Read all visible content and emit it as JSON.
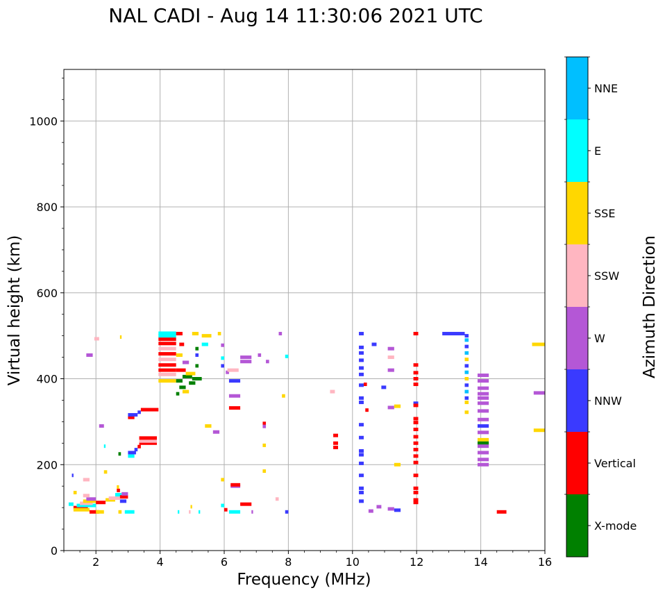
{
  "chart_data": {
    "type": "scatter",
    "title": "NAL CADI - Aug 14 11:30:06 2021 UTC",
    "xlabel": "Frequency (MHz)",
    "ylabel": "Virtual height (km)",
    "xlim": [
      1,
      16
    ],
    "ylim": [
      0,
      1120
    ],
    "xticks": [
      2,
      4,
      6,
      8,
      10,
      12,
      14,
      16
    ],
    "yticks": [
      0,
      200,
      400,
      600,
      800,
      1000
    ],
    "grid": true,
    "colorbar": {
      "label": "Azimuth Direction",
      "categories": [
        "X-mode",
        "Vertical",
        "NNW",
        "W",
        "SSW",
        "SSE",
        "E",
        "NNE"
      ],
      "colors": [
        "#008000",
        "#ff0000",
        "#3a3aff",
        "#b457d6",
        "#ffb6c1",
        "#ffd700",
        "#00ffff",
        "#00bfff"
      ]
    },
    "marks": [
      {
        "f": 1.3,
        "f2": 1.75,
        "h": 100,
        "dir": "Vertical"
      },
      {
        "f": 1.3,
        "f2": 1.8,
        "h": 95,
        "dir": "SSE"
      },
      {
        "f": 1.4,
        "f2": 2.0,
        "h": 105,
        "dir": "E"
      },
      {
        "f": 1.5,
        "f2": 1.9,
        "h": 110,
        "dir": "SSW"
      },
      {
        "f": 1.6,
        "f2": 2.0,
        "h": 115,
        "dir": "SSE"
      },
      {
        "f": 1.7,
        "f2": 2.0,
        "h": 120,
        "dir": "W"
      },
      {
        "f": 1.3,
        "f2": 1.4,
        "h": 135,
        "dir": "SSE"
      },
      {
        "f": 1.6,
        "f2": 1.8,
        "h": 128,
        "dir": "SSW"
      },
      {
        "f": 1.6,
        "f2": 1.8,
        "h": 165,
        "dir": "SSW"
      },
      {
        "f": 1.25,
        "f2": 1.3,
        "h": 175,
        "dir": "NNW"
      },
      {
        "f": 1.15,
        "f2": 1.3,
        "h": 108,
        "dir": "E"
      },
      {
        "f": 1.8,
        "f2": 2.1,
        "h": 90,
        "dir": "Vertical"
      },
      {
        "f": 2.0,
        "f2": 2.3,
        "h": 112,
        "dir": "Vertical"
      },
      {
        "f": 2.0,
        "f2": 2.25,
        "h": 90,
        "dir": "SSE"
      },
      {
        "f": 2.3,
        "f2": 2.6,
        "h": 118,
        "dir": "SSE"
      },
      {
        "f": 2.4,
        "f2": 2.75,
        "h": 122,
        "dir": "SSW"
      },
      {
        "f": 2.6,
        "f2": 2.8,
        "h": 130,
        "dir": "E"
      },
      {
        "f": 2.75,
        "f2": 3.0,
        "h": 125,
        "dir": "Vertical"
      },
      {
        "f": 2.75,
        "f2": 2.95,
        "h": 115,
        "dir": "NNW"
      },
      {
        "f": 2.8,
        "f2": 3.0,
        "h": 132,
        "dir": "W"
      },
      {
        "f": 2.65,
        "f2": 2.75,
        "h": 140,
        "dir": "Vertical"
      },
      {
        "f": 2.65,
        "f2": 2.72,
        "h": 148,
        "dir": "SSE"
      },
      {
        "f": 2.9,
        "f2": 3.2,
        "h": 90,
        "dir": "E"
      },
      {
        "f": 2.7,
        "f2": 2.8,
        "h": 90,
        "dir": "SSE"
      },
      {
        "f": 2.25,
        "f2": 2.35,
        "h": 183,
        "dir": "SSE"
      },
      {
        "f": 2.25,
        "f2": 2.3,
        "h": 243,
        "dir": "E"
      },
      {
        "f": 2.1,
        "f2": 2.25,
        "h": 290,
        "dir": "W"
      },
      {
        "f": 2.7,
        "f2": 2.78,
        "h": 225,
        "dir": "X-mode"
      },
      {
        "f": 2.75,
        "f2": 2.8,
        "h": 497,
        "dir": "SSE"
      },
      {
        "f": 1.95,
        "f2": 2.1,
        "h": 493,
        "dir": "SSW"
      },
      {
        "f": 1.7,
        "f2": 1.9,
        "h": 455,
        "dir": "W"
      },
      {
        "f": 3.0,
        "f2": 3.2,
        "h": 220,
        "dir": "E"
      },
      {
        "f": 3.0,
        "f2": 3.25,
        "h": 228,
        "dir": "NNW"
      },
      {
        "f": 3.2,
        "f2": 3.3,
        "h": 235,
        "dir": "NNW"
      },
      {
        "f": 3.3,
        "f2": 3.4,
        "h": 242,
        "dir": "Vertical"
      },
      {
        "f": 3.35,
        "f2": 3.9,
        "h": 250,
        "dir": "Vertical"
      },
      {
        "f": 3.35,
        "f2": 3.9,
        "h": 255,
        "dir": "SSW"
      },
      {
        "f": 3.35,
        "f2": 3.9,
        "h": 262,
        "dir": "Vertical"
      },
      {
        "f": 3.0,
        "f2": 3.2,
        "h": 310,
        "dir": "Vertical"
      },
      {
        "f": 3.0,
        "f2": 3.3,
        "h": 316,
        "dir": "NNW"
      },
      {
        "f": 3.3,
        "f2": 3.4,
        "h": 322,
        "dir": "NNW"
      },
      {
        "f": 3.4,
        "f2": 3.95,
        "h": 328,
        "dir": "Vertical"
      },
      {
        "f": 3.95,
        "f2": 4.5,
        "h": 395,
        "dir": "SSE"
      },
      {
        "f": 3.95,
        "f2": 4.5,
        "h": 410,
        "dir": "SSW"
      },
      {
        "f": 3.95,
        "f2": 4.5,
        "h": 420,
        "dir": "Vertical"
      },
      {
        "f": 3.95,
        "f2": 4.5,
        "h": 432,
        "dir": "Vertical"
      },
      {
        "f": 3.95,
        "f2": 4.5,
        "h": 445,
        "dir": "SSW"
      },
      {
        "f": 3.95,
        "f2": 4.5,
        "h": 458,
        "dir": "Vertical"
      },
      {
        "f": 3.95,
        "f2": 4.5,
        "h": 470,
        "dir": "SSW"
      },
      {
        "f": 3.95,
        "f2": 4.5,
        "h": 482,
        "dir": "Vertical"
      },
      {
        "f": 3.95,
        "f2": 4.5,
        "h": 492,
        "dir": "Vertical"
      },
      {
        "f": 3.95,
        "f2": 4.5,
        "h": 500,
        "dir": "E"
      },
      {
        "f": 3.95,
        "f2": 4.5,
        "h": 506,
        "dir": "E"
      },
      {
        "f": 4.5,
        "f2": 4.7,
        "h": 395,
        "dir": "X-mode"
      },
      {
        "f": 4.6,
        "f2": 4.8,
        "h": 380,
        "dir": "X-mode"
      },
      {
        "f": 4.5,
        "f2": 4.6,
        "h": 365,
        "dir": "X-mode"
      },
      {
        "f": 4.7,
        "f2": 5.0,
        "h": 405,
        "dir": "X-mode"
      },
      {
        "f": 4.8,
        "f2": 5.1,
        "h": 412,
        "dir": "SSE"
      },
      {
        "f": 5.0,
        "f2": 5.3,
        "h": 400,
        "dir": "X-mode"
      },
      {
        "f": 4.5,
        "f2": 4.8,
        "h": 420,
        "dir": "Vertical"
      },
      {
        "f": 4.7,
        "f2": 4.9,
        "h": 438,
        "dir": "W"
      },
      {
        "f": 5.1,
        "f2": 5.2,
        "h": 430,
        "dir": "X-mode"
      },
      {
        "f": 5.1,
        "f2": 5.2,
        "h": 455,
        "dir": "NNW"
      },
      {
        "f": 5.1,
        "f2": 5.2,
        "h": 470,
        "dir": "X-mode"
      },
      {
        "f": 4.5,
        "f2": 4.7,
        "h": 455,
        "dir": "SSE"
      },
      {
        "f": 4.6,
        "f2": 4.75,
        "h": 480,
        "dir": "Vertical"
      },
      {
        "f": 4.5,
        "f2": 4.7,
        "h": 505,
        "dir": "Vertical"
      },
      {
        "f": 5.0,
        "f2": 5.2,
        "h": 505,
        "dir": "SSE"
      },
      {
        "f": 5.3,
        "f2": 5.6,
        "h": 500,
        "dir": "SSE"
      },
      {
        "f": 5.3,
        "f2": 5.5,
        "h": 480,
        "dir": "E"
      },
      {
        "f": 4.9,
        "f2": 5.1,
        "h": 390,
        "dir": "X-mode"
      },
      {
        "f": 4.7,
        "f2": 4.9,
        "h": 370,
        "dir": "SSE"
      },
      {
        "f": 5.4,
        "f2": 5.6,
        "h": 290,
        "dir": "SSE"
      },
      {
        "f": 5.65,
        "f2": 5.85,
        "h": 276,
        "dir": "W"
      },
      {
        "f": 4.55,
        "f2": 4.6,
        "h": 90,
        "dir": "E"
      },
      {
        "f": 4.9,
        "f2": 4.95,
        "h": 90,
        "dir": "SSW"
      },
      {
        "f": 4.95,
        "f2": 5.0,
        "h": 102,
        "dir": "SSE"
      },
      {
        "f": 5.2,
        "f2": 5.25,
        "h": 90,
        "dir": "E"
      },
      {
        "f": 5.9,
        "f2": 6.0,
        "h": 165,
        "dir": "SSE"
      },
      {
        "f": 5.9,
        "f2": 6.0,
        "h": 105,
        "dir": "E"
      },
      {
        "f": 6.0,
        "f2": 6.1,
        "h": 95,
        "dir": "Vertical"
      },
      {
        "f": 6.15,
        "f2": 6.5,
        "h": 90,
        "dir": "E"
      },
      {
        "f": 6.2,
        "f2": 6.5,
        "h": 150,
        "dir": "W"
      },
      {
        "f": 6.2,
        "f2": 6.5,
        "h": 153,
        "dir": "Vertical"
      },
      {
        "f": 6.5,
        "f2": 6.85,
        "h": 108,
        "dir": "Vertical"
      },
      {
        "f": 6.85,
        "f2": 6.9,
        "h": 90,
        "dir": "W"
      },
      {
        "f": 5.9,
        "f2": 6.0,
        "h": 430,
        "dir": "NNW"
      },
      {
        "f": 5.9,
        "f2": 6.0,
        "h": 448,
        "dir": "E"
      },
      {
        "f": 6.05,
        "f2": 6.15,
        "h": 415,
        "dir": "W"
      },
      {
        "f": 6.1,
        "f2": 6.45,
        "h": 420,
        "dir": "SSW"
      },
      {
        "f": 6.15,
        "f2": 6.5,
        "h": 395,
        "dir": "NNW"
      },
      {
        "f": 6.15,
        "f2": 6.5,
        "h": 360,
        "dir": "W"
      },
      {
        "f": 6.15,
        "f2": 6.5,
        "h": 332,
        "dir": "Vertical"
      },
      {
        "f": 6.5,
        "f2": 6.85,
        "h": 440,
        "dir": "W"
      },
      {
        "f": 6.5,
        "f2": 6.85,
        "h": 450,
        "dir": "W"
      },
      {
        "f": 7.05,
        "f2": 7.15,
        "h": 455,
        "dir": "W"
      },
      {
        "f": 7.3,
        "f2": 7.4,
        "h": 440,
        "dir": "W"
      },
      {
        "f": 7.7,
        "f2": 7.8,
        "h": 505,
        "dir": "W"
      },
      {
        "f": 7.8,
        "f2": 7.9,
        "h": 360,
        "dir": "SSE"
      },
      {
        "f": 7.9,
        "f2": 8.0,
        "h": 452,
        "dir": "E"
      },
      {
        "f": 7.2,
        "f2": 7.3,
        "h": 296,
        "dir": "Vertical"
      },
      {
        "f": 7.2,
        "f2": 7.3,
        "h": 289,
        "dir": "W"
      },
      {
        "f": 7.2,
        "f2": 7.3,
        "h": 245,
        "dir": "SSE"
      },
      {
        "f": 7.2,
        "f2": 7.3,
        "h": 185,
        "dir": "SSE"
      },
      {
        "f": 7.6,
        "f2": 7.7,
        "h": 120,
        "dir": "SSW"
      },
      {
        "f": 7.9,
        "f2": 8.0,
        "h": 90,
        "dir": "NNW"
      },
      {
        "f": 5.8,
        "f2": 5.9,
        "h": 505,
        "dir": "SSE"
      },
      {
        "f": 5.9,
        "f2": 6.0,
        "h": 478,
        "dir": "W"
      },
      {
        "f": 9.3,
        "f2": 9.45,
        "h": 370,
        "dir": "SSW"
      },
      {
        "f": 9.4,
        "f2": 9.55,
        "h": 268,
        "dir": "Vertical"
      },
      {
        "f": 9.4,
        "f2": 9.55,
        "h": 250,
        "dir": "Vertical"
      },
      {
        "f": 9.4,
        "f2": 9.55,
        "h": 240,
        "dir": "Vertical"
      },
      {
        "f": 10.2,
        "f2": 10.35,
        "h": 505,
        "dir": "NNW"
      },
      {
        "f": 10.2,
        "f2": 10.35,
        "h": 473,
        "dir": "NNW"
      },
      {
        "f": 10.2,
        "f2": 10.35,
        "h": 460,
        "dir": "NNW"
      },
      {
        "f": 10.2,
        "f2": 10.35,
        "h": 443,
        "dir": "NNW"
      },
      {
        "f": 10.2,
        "f2": 10.35,
        "h": 425,
        "dir": "NNW"
      },
      {
        "f": 10.2,
        "f2": 10.35,
        "h": 410,
        "dir": "NNW"
      },
      {
        "f": 10.2,
        "f2": 10.35,
        "h": 385,
        "dir": "NNW"
      },
      {
        "f": 10.2,
        "f2": 10.35,
        "h": 355,
        "dir": "NNW"
      },
      {
        "f": 10.2,
        "f2": 10.35,
        "h": 345,
        "dir": "NNW"
      },
      {
        "f": 10.2,
        "f2": 10.35,
        "h": 293,
        "dir": "NNW"
      },
      {
        "f": 10.2,
        "f2": 10.35,
        "h": 263,
        "dir": "NNW"
      },
      {
        "f": 10.2,
        "f2": 10.35,
        "h": 232,
        "dir": "NNW"
      },
      {
        "f": 10.2,
        "f2": 10.35,
        "h": 223,
        "dir": "NNW"
      },
      {
        "f": 10.2,
        "f2": 10.35,
        "h": 203,
        "dir": "NNW"
      },
      {
        "f": 10.2,
        "f2": 10.35,
        "h": 175,
        "dir": "NNW"
      },
      {
        "f": 10.2,
        "f2": 10.35,
        "h": 145,
        "dir": "NNW"
      },
      {
        "f": 10.2,
        "f2": 10.35,
        "h": 135,
        "dir": "NNW"
      },
      {
        "f": 10.2,
        "f2": 10.35,
        "h": 115,
        "dir": "NNW"
      },
      {
        "f": 10.35,
        "f2": 10.45,
        "h": 387,
        "dir": "Vertical"
      },
      {
        "f": 10.4,
        "f2": 10.5,
        "h": 327,
        "dir": "Vertical"
      },
      {
        "f": 10.5,
        "f2": 10.65,
        "h": 92,
        "dir": "W"
      },
      {
        "f": 10.6,
        "f2": 10.75,
        "h": 480,
        "dir": "NNW"
      },
      {
        "f": 10.75,
        "f2": 10.9,
        "h": 102,
        "dir": "W"
      },
      {
        "f": 10.9,
        "f2": 11.05,
        "h": 380,
        "dir": "NNW"
      },
      {
        "f": 11.1,
        "f2": 11.3,
        "h": 470,
        "dir": "W"
      },
      {
        "f": 11.1,
        "f2": 11.3,
        "h": 450,
        "dir": "SSW"
      },
      {
        "f": 11.1,
        "f2": 11.3,
        "h": 420,
        "dir": "W"
      },
      {
        "f": 11.1,
        "f2": 11.3,
        "h": 333,
        "dir": "W"
      },
      {
        "f": 11.3,
        "f2": 11.5,
        "h": 336,
        "dir": "SSE"
      },
      {
        "f": 11.3,
        "f2": 11.5,
        "h": 200,
        "dir": "SSE"
      },
      {
        "f": 11.1,
        "f2": 11.3,
        "h": 97,
        "dir": "W"
      },
      {
        "f": 11.3,
        "f2": 11.5,
        "h": 94,
        "dir": "NNW"
      },
      {
        "f": 11.9,
        "f2": 12.05,
        "h": 505,
        "dir": "Vertical"
      },
      {
        "f": 11.9,
        "f2": 12.05,
        "h": 432,
        "dir": "Vertical"
      },
      {
        "f": 11.9,
        "f2": 12.05,
        "h": 414,
        "dir": "Vertical"
      },
      {
        "f": 11.9,
        "f2": 12.05,
        "h": 400,
        "dir": "Vertical"
      },
      {
        "f": 11.9,
        "f2": 12.05,
        "h": 387,
        "dir": "Vertical"
      },
      {
        "f": 11.9,
        "f2": 12.05,
        "h": 343,
        "dir": "NNW"
      },
      {
        "f": 11.9,
        "f2": 12.05,
        "h": 338,
        "dir": "Vertical"
      },
      {
        "f": 11.9,
        "f2": 12.05,
        "h": 307,
        "dir": "Vertical"
      },
      {
        "f": 11.9,
        "f2": 12.05,
        "h": 298,
        "dir": "Vertical"
      },
      {
        "f": 11.9,
        "f2": 12.05,
        "h": 282,
        "dir": "Vertical"
      },
      {
        "f": 11.9,
        "f2": 12.05,
        "h": 265,
        "dir": "Vertical"
      },
      {
        "f": 11.9,
        "f2": 12.05,
        "h": 250,
        "dir": "Vertical"
      },
      {
        "f": 11.9,
        "f2": 12.05,
        "h": 235,
        "dir": "Vertical"
      },
      {
        "f": 11.9,
        "f2": 12.05,
        "h": 220,
        "dir": "Vertical"
      },
      {
        "f": 11.9,
        "f2": 12.05,
        "h": 205,
        "dir": "Vertical"
      },
      {
        "f": 11.9,
        "f2": 12.05,
        "h": 175,
        "dir": "Vertical"
      },
      {
        "f": 11.9,
        "f2": 12.05,
        "h": 145,
        "dir": "Vertical"
      },
      {
        "f": 11.9,
        "f2": 12.05,
        "h": 135,
        "dir": "Vertical"
      },
      {
        "f": 11.9,
        "f2": 12.05,
        "h": 118,
        "dir": "Vertical"
      },
      {
        "f": 11.9,
        "f2": 12.05,
        "h": 112,
        "dir": "Vertical"
      },
      {
        "f": 12.8,
        "f2": 13.5,
        "h": 505,
        "dir": "NNW"
      },
      {
        "f": 13.5,
        "f2": 13.62,
        "h": 500,
        "dir": "NNW"
      },
      {
        "f": 13.5,
        "f2": 13.62,
        "h": 490,
        "dir": "NNE"
      },
      {
        "f": 13.5,
        "f2": 13.62,
        "h": 475,
        "dir": "NNW"
      },
      {
        "f": 13.5,
        "f2": 13.62,
        "h": 460,
        "dir": "NNE"
      },
      {
        "f": 13.5,
        "f2": 13.62,
        "h": 445,
        "dir": "SSE"
      },
      {
        "f": 13.5,
        "f2": 13.62,
        "h": 430,
        "dir": "NNW"
      },
      {
        "f": 13.5,
        "f2": 13.62,
        "h": 415,
        "dir": "NNE"
      },
      {
        "f": 13.5,
        "f2": 13.62,
        "h": 400,
        "dir": "SSE"
      },
      {
        "f": 13.5,
        "f2": 13.62,
        "h": 385,
        "dir": "NNW"
      },
      {
        "f": 13.5,
        "f2": 13.62,
        "h": 370,
        "dir": "NNE"
      },
      {
        "f": 13.5,
        "f2": 13.62,
        "h": 355,
        "dir": "NNW"
      },
      {
        "f": 13.5,
        "f2": 13.62,
        "h": 345,
        "dir": "SSE"
      },
      {
        "f": 13.5,
        "f2": 13.62,
        "h": 322,
        "dir": "SSE"
      },
      {
        "f": 13.9,
        "f2": 14.25,
        "h": 408,
        "dir": "W"
      },
      {
        "f": 13.9,
        "f2": 14.25,
        "h": 395,
        "dir": "W"
      },
      {
        "f": 13.9,
        "f2": 14.25,
        "h": 378,
        "dir": "W"
      },
      {
        "f": 13.9,
        "f2": 14.25,
        "h": 365,
        "dir": "W"
      },
      {
        "f": 13.9,
        "f2": 14.25,
        "h": 355,
        "dir": "W"
      },
      {
        "f": 13.9,
        "f2": 14.25,
        "h": 343,
        "dir": "W"
      },
      {
        "f": 13.9,
        "f2": 14.25,
        "h": 325,
        "dir": "W"
      },
      {
        "f": 13.9,
        "f2": 14.25,
        "h": 305,
        "dir": "W"
      },
      {
        "f": 13.9,
        "f2": 14.25,
        "h": 290,
        "dir": "NNW"
      },
      {
        "f": 13.9,
        "f2": 14.25,
        "h": 275,
        "dir": "W"
      },
      {
        "f": 13.9,
        "f2": 14.25,
        "h": 258,
        "dir": "SSE"
      },
      {
        "f": 13.9,
        "f2": 14.25,
        "h": 250,
        "dir": "X-mode"
      },
      {
        "f": 13.9,
        "f2": 14.25,
        "h": 243,
        "dir": "W"
      },
      {
        "f": 13.9,
        "f2": 14.25,
        "h": 228,
        "dir": "W"
      },
      {
        "f": 13.9,
        "f2": 14.25,
        "h": 212,
        "dir": "W"
      },
      {
        "f": 13.9,
        "f2": 14.25,
        "h": 200,
        "dir": "W"
      },
      {
        "f": 14.5,
        "f2": 14.8,
        "h": 90,
        "dir": "Vertical"
      },
      {
        "f": 15.6,
        "f2": 16.0,
        "h": 480,
        "dir": "SSE"
      },
      {
        "f": 15.65,
        "f2": 16.0,
        "h": 367,
        "dir": "W"
      },
      {
        "f": 15.65,
        "f2": 16.0,
        "h": 280,
        "dir": "SSE"
      }
    ]
  }
}
